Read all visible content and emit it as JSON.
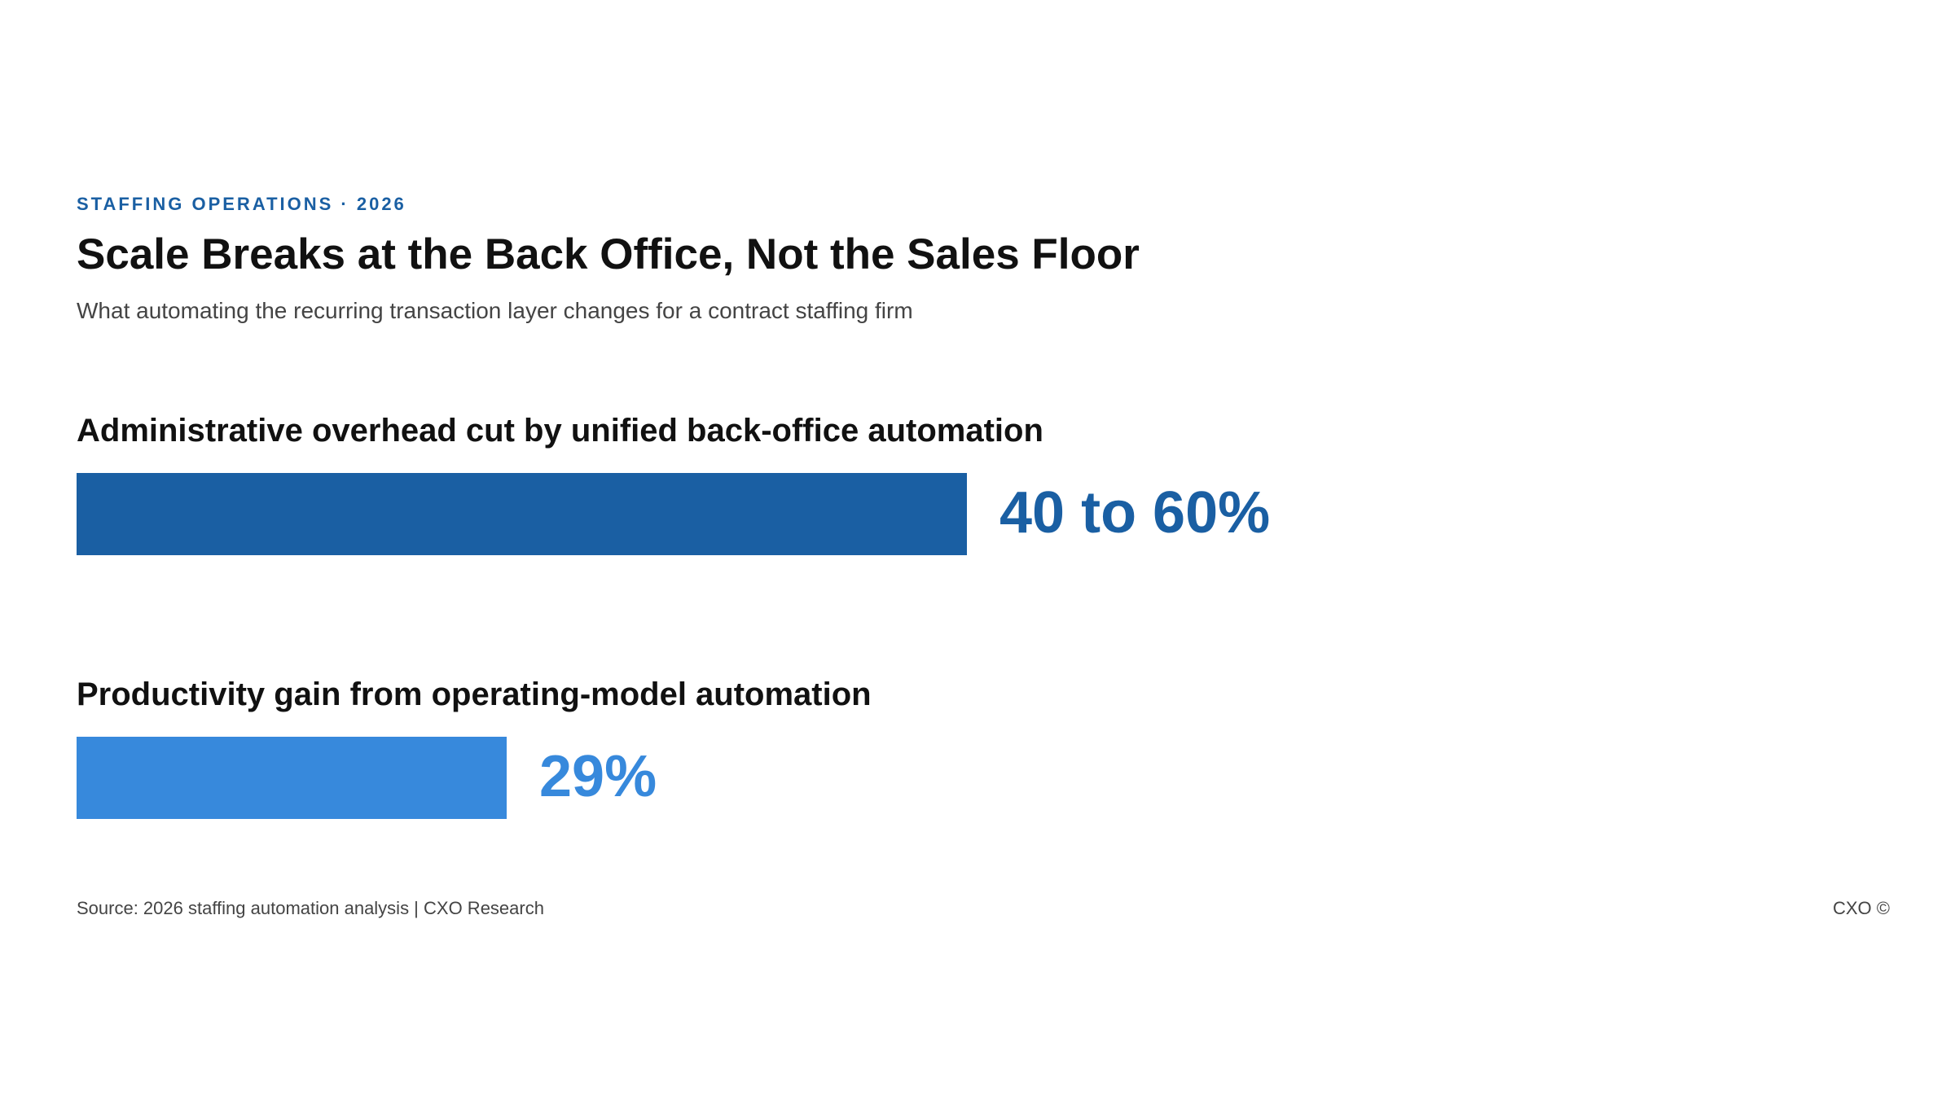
{
  "header": {
    "eyebrow": "STAFFING OPERATIONS · 2026",
    "title": "Scale Breaks at the Back Office, Not the Sales Floor",
    "subtitle": "What automating the recurring transaction layer changes for a contract staffing firm"
  },
  "chart_data": {
    "type": "bar",
    "orientation": "horizontal",
    "xlim": [
      0,
      100
    ],
    "grid": false,
    "legend": "none",
    "items": [
      {
        "label": "Administrative overhead cut by unified back-office automation",
        "value_text": "40 to 60%",
        "value": 60,
        "range": [
          40,
          60
        ],
        "color": "#1a5fa3"
      },
      {
        "label": "Productivity gain from operating-model automation",
        "value_text": "29%",
        "value": 29,
        "color": "#3789dc"
      }
    ]
  },
  "footer": {
    "source": "Source: 2026 staffing automation analysis | CXO Research",
    "copyright": "CXO ©"
  }
}
